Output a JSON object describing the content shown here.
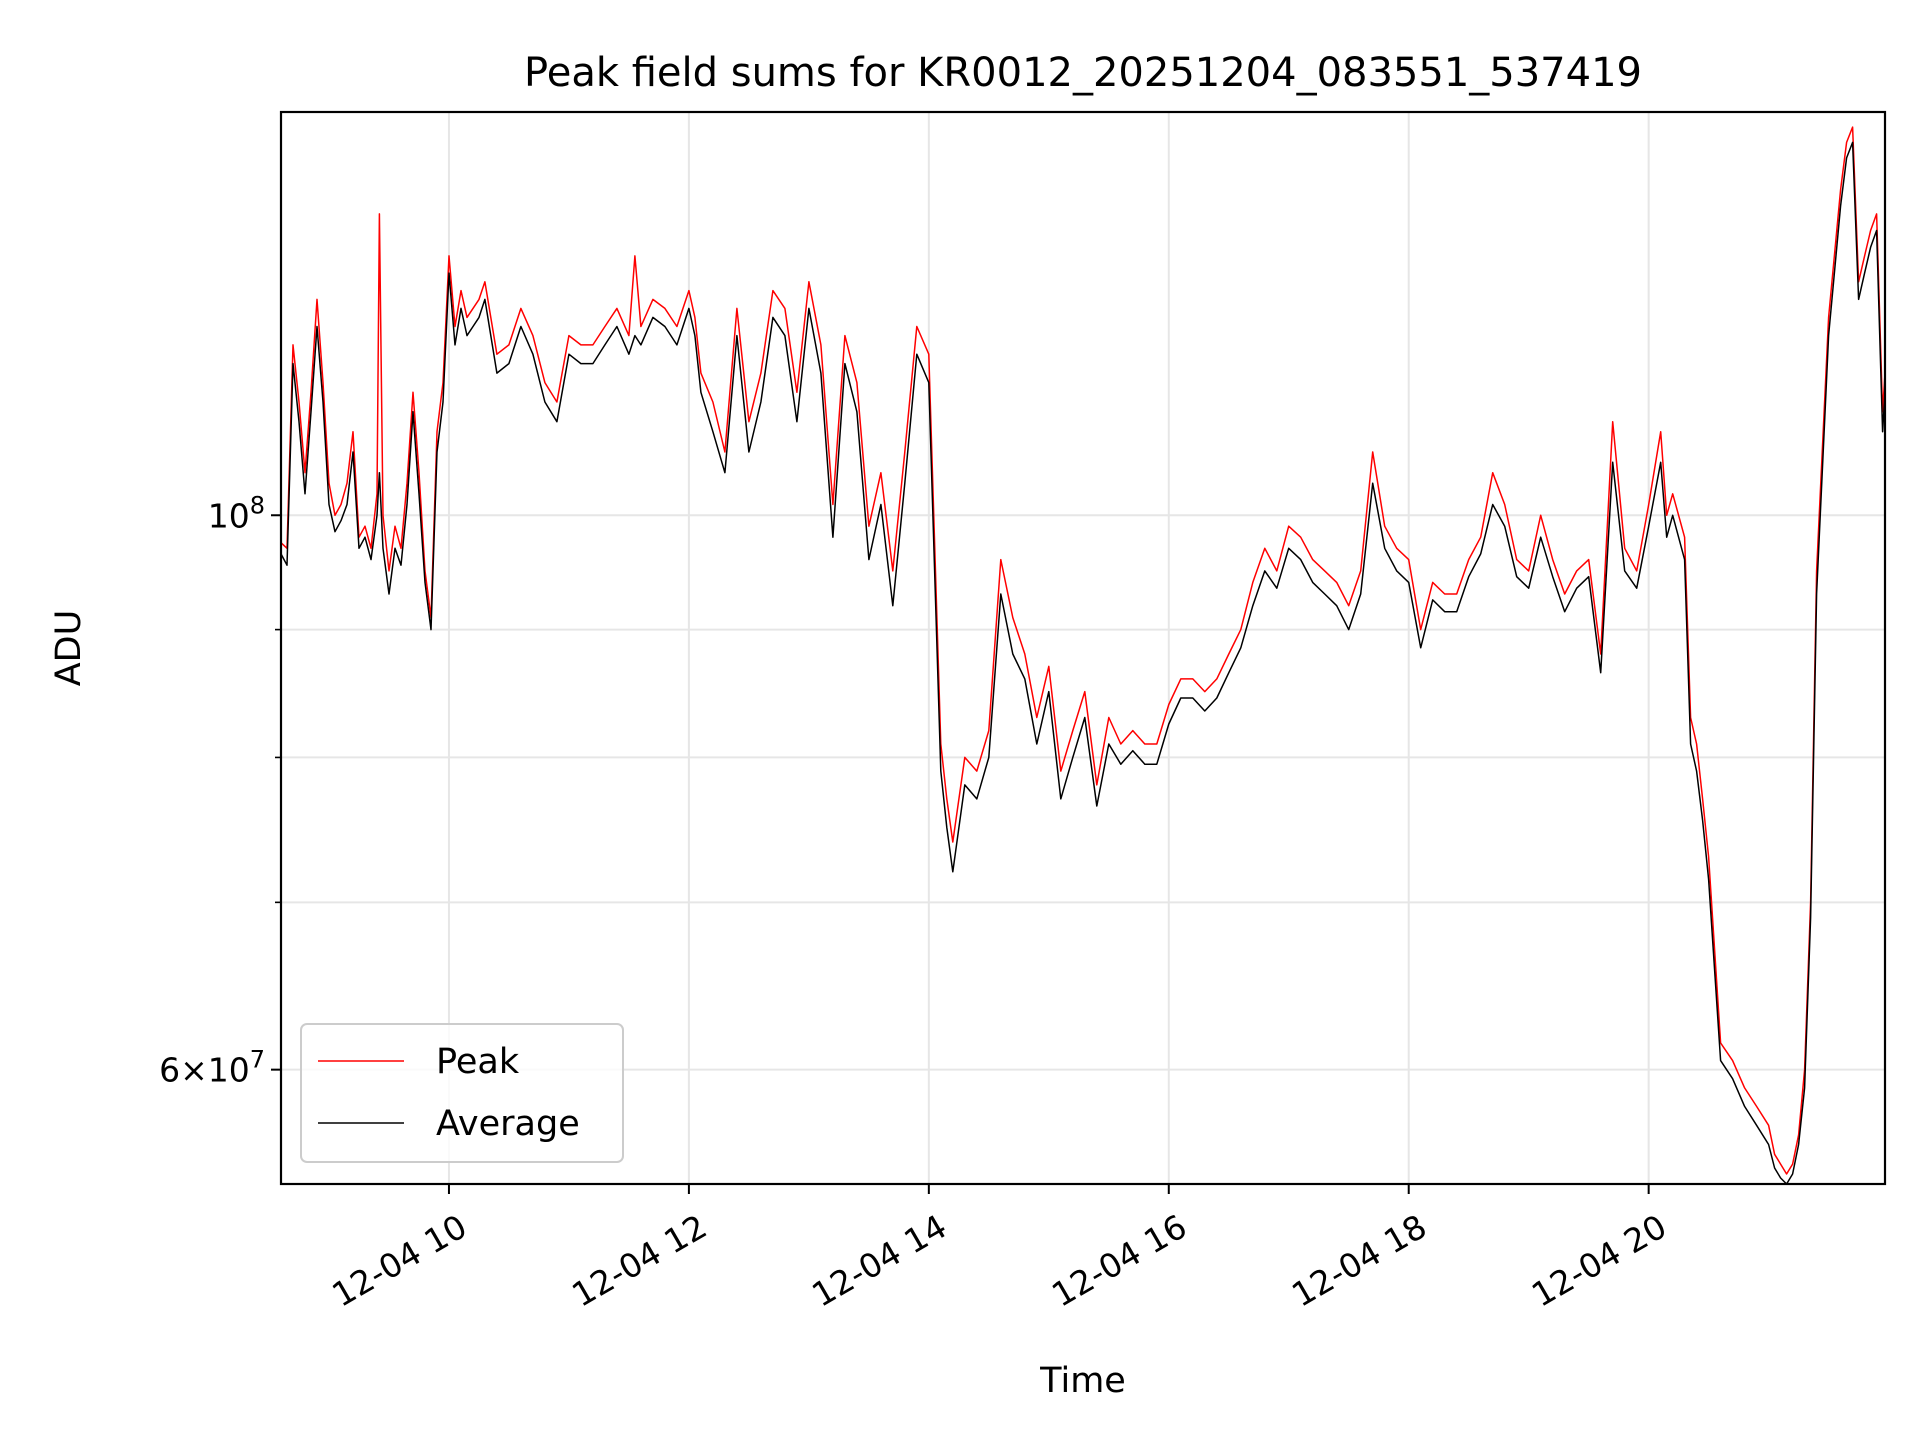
{
  "chart_data": {
    "type": "line",
    "title": "Peak field sums for KR0012_20251204_083551_537419",
    "xlabel": "Time",
    "ylabel": "ADU",
    "yscale": "log",
    "ylim": [
      54000000,
      145000000
    ],
    "xlim": [
      8.6,
      21.97
    ],
    "x_unit": "hours of day (2025-12-04)",
    "xticks": [
      {
        "value": 10,
        "label": "12-04 10"
      },
      {
        "value": 12,
        "label": "12-04 12"
      },
      {
        "value": 14,
        "label": "12-04 14"
      },
      {
        "value": 16,
        "label": "12-04 16"
      },
      {
        "value": 18,
        "label": "12-04 18"
      },
      {
        "value": 20,
        "label": "12-04 20"
      }
    ],
    "yticks_major": [
      {
        "value": 60000000,
        "base": "6",
        "times": "×",
        "exp_base": "10",
        "exp": "7"
      },
      {
        "value": 100000000,
        "base": "",
        "times": "",
        "exp_base": "10",
        "exp": "8"
      }
    ],
    "yticks_minor": [
      70000000,
      80000000,
      90000000
    ],
    "grid": true,
    "legend_position": "lower-left",
    "series": [
      {
        "name": "Peak",
        "color": "#ff0000",
        "x": [
          8.6,
          8.65,
          8.7,
          8.75,
          8.8,
          8.85,
          8.9,
          8.95,
          9.0,
          9.05,
          9.1,
          9.15,
          9.2,
          9.25,
          9.3,
          9.35,
          9.4,
          9.42,
          9.45,
          9.5,
          9.55,
          9.6,
          9.65,
          9.7,
          9.75,
          9.8,
          9.85,
          9.9,
          9.95,
          10.0,
          10.05,
          10.1,
          10.15,
          10.2,
          10.25,
          10.3,
          10.4,
          10.5,
          10.6,
          10.7,
          10.8,
          10.9,
          11.0,
          11.1,
          11.2,
          11.3,
          11.4,
          11.5,
          11.55,
          11.6,
          11.7,
          11.8,
          11.9,
          12.0,
          12.05,
          12.1,
          12.2,
          12.3,
          12.4,
          12.5,
          12.6,
          12.7,
          12.8,
          12.9,
          13.0,
          13.1,
          13.2,
          13.3,
          13.4,
          13.5,
          13.6,
          13.7,
          13.8,
          13.9,
          14.0,
          14.1,
          14.15,
          14.2,
          14.3,
          14.4,
          14.5,
          14.6,
          14.7,
          14.8,
          14.9,
          15.0,
          15.1,
          15.2,
          15.3,
          15.4,
          15.5,
          15.6,
          15.7,
          15.8,
          15.9,
          16.0,
          16.1,
          16.2,
          16.3,
          16.4,
          16.5,
          16.6,
          16.7,
          16.8,
          16.9,
          17.0,
          17.1,
          17.2,
          17.3,
          17.4,
          17.5,
          17.6,
          17.7,
          17.8,
          17.9,
          18.0,
          18.1,
          18.2,
          18.3,
          18.4,
          18.5,
          18.6,
          18.7,
          18.8,
          18.9,
          19.0,
          19.1,
          19.2,
          19.3,
          19.4,
          19.5,
          19.6,
          19.7,
          19.8,
          19.9,
          20.0,
          20.1,
          20.15,
          20.2,
          20.3,
          20.35,
          20.4,
          20.45,
          20.5,
          20.6,
          20.7,
          20.8,
          20.9,
          21.0,
          21.05,
          21.1,
          21.15,
          21.2,
          21.25,
          21.3,
          21.35,
          21.4,
          21.5,
          21.6,
          21.65,
          21.7,
          21.75,
          21.8,
          21.85,
          21.9,
          21.95,
          21.97
        ],
        "values": [
          97500000,
          97000000,
          117000000,
          111000000,
          104000000,
          112000000,
          122000000,
          113000000,
          103000000,
          100000000,
          101000000,
          103000000,
          108000000,
          98000000,
          99000000,
          97000000,
          102000000,
          132000000,
          100000000,
          95000000,
          99000000,
          97000000,
          103000000,
          112000000,
          104000000,
          95000000,
          91000000,
          108000000,
          113000000,
          127000000,
          119000000,
          123000000,
          120000000,
          121000000,
          122000000,
          124000000,
          116000000,
          117000000,
          121000000,
          118000000,
          113000000,
          111000000,
          118000000,
          117000000,
          117000000,
          119000000,
          121000000,
          118000000,
          127000000,
          119000000,
          122000000,
          121000000,
          119000000,
          123000000,
          120000000,
          114000000,
          111000000,
          106000000,
          121000000,
          109000000,
          114000000,
          123000000,
          121000000,
          112000000,
          124000000,
          117000000,
          101000000,
          118000000,
          113000000,
          99000000,
          104000000,
          95000000,
          106000000,
          119000000,
          116000000,
          81000000,
          77000000,
          74000000,
          80000000,
          79000000,
          82000000,
          96000000,
          91000000,
          88000000,
          83000000,
          87000000,
          79000000,
          82000000,
          85000000,
          78000000,
          83000000,
          81000000,
          82000000,
          81000000,
          81000000,
          84000000,
          86000000,
          86000000,
          85000000,
          86000000,
          88000000,
          90000000,
          94000000,
          97000000,
          95000000,
          99000000,
          98000000,
          96000000,
          95000000,
          94000000,
          92000000,
          95000000,
          106000000,
          99000000,
          97000000,
          96000000,
          90000000,
          94000000,
          93000000,
          93000000,
          96000000,
          98000000,
          104000000,
          101000000,
          96000000,
          95000000,
          100000000,
          96000000,
          93000000,
          95000000,
          96000000,
          88000000,
          109000000,
          97000000,
          95000000,
          101000000,
          108000000,
          100000000,
          102000000,
          98000000,
          83000000,
          81000000,
          77000000,
          73000000,
          61500000,
          60500000,
          59000000,
          58000000,
          57000000,
          55500000,
          55000000,
          54500000,
          55000000,
          56500000,
          60000000,
          70000000,
          95000000,
          120000000,
          135000000,
          141000000,
          143000000,
          124000000,
          127000000,
          130000000,
          132000000,
          110000000,
          114000000
        ]
      },
      {
        "name": "Average",
        "color": "#000000",
        "x": [
          8.6,
          8.65,
          8.7,
          8.75,
          8.8,
          8.85,
          8.9,
          8.95,
          9.0,
          9.05,
          9.1,
          9.15,
          9.2,
          9.25,
          9.3,
          9.35,
          9.4,
          9.42,
          9.45,
          9.5,
          9.55,
          9.6,
          9.65,
          9.7,
          9.75,
          9.8,
          9.85,
          9.9,
          9.95,
          10.0,
          10.05,
          10.1,
          10.15,
          10.2,
          10.25,
          10.3,
          10.4,
          10.5,
          10.6,
          10.7,
          10.8,
          10.9,
          11.0,
          11.1,
          11.2,
          11.3,
          11.4,
          11.5,
          11.55,
          11.6,
          11.7,
          11.8,
          11.9,
          12.0,
          12.05,
          12.1,
          12.2,
          12.3,
          12.4,
          12.5,
          12.6,
          12.7,
          12.8,
          12.9,
          13.0,
          13.1,
          13.2,
          13.3,
          13.4,
          13.5,
          13.6,
          13.7,
          13.8,
          13.9,
          14.0,
          14.1,
          14.15,
          14.2,
          14.3,
          14.4,
          14.5,
          14.6,
          14.7,
          14.8,
          14.9,
          15.0,
          15.1,
          15.2,
          15.3,
          15.4,
          15.5,
          15.6,
          15.7,
          15.8,
          15.9,
          16.0,
          16.1,
          16.2,
          16.3,
          16.4,
          16.5,
          16.6,
          16.7,
          16.8,
          16.9,
          17.0,
          17.1,
          17.2,
          17.3,
          17.4,
          17.5,
          17.6,
          17.7,
          17.8,
          17.9,
          18.0,
          18.1,
          18.2,
          18.3,
          18.4,
          18.5,
          18.6,
          18.7,
          18.8,
          18.9,
          19.0,
          19.1,
          19.2,
          19.3,
          19.4,
          19.5,
          19.6,
          19.7,
          19.8,
          19.9,
          20.0,
          20.1,
          20.15,
          20.2,
          20.3,
          20.35,
          20.4,
          20.45,
          20.5,
          20.6,
          20.7,
          20.8,
          20.9,
          21.0,
          21.05,
          21.1,
          21.15,
          21.2,
          21.25,
          21.3,
          21.35,
          21.4,
          21.5,
          21.6,
          21.65,
          21.7,
          21.75,
          21.8,
          21.85,
          21.9,
          21.95,
          21.97
        ],
        "values": [
          96500000,
          95500000,
          115000000,
          109000000,
          102000000,
          110000000,
          119000000,
          111000000,
          101000000,
          98500000,
          99500000,
          101000000,
          106000000,
          97000000,
          98000000,
          96000000,
          100000000,
          104000000,
          97000000,
          93000000,
          97000000,
          95500000,
          101000000,
          110000000,
          102000000,
          94000000,
          90000000,
          106000000,
          111000000,
          125000000,
          117000000,
          121000000,
          118000000,
          119000000,
          120000000,
          122000000,
          114000000,
          115000000,
          119000000,
          116000000,
          111000000,
          109000000,
          116000000,
          115000000,
          115000000,
          117000000,
          119000000,
          116000000,
          118000000,
          117000000,
          120000000,
          119000000,
          117000000,
          121000000,
          118000000,
          112000000,
          108000000,
          104000000,
          118000000,
          106000000,
          111000000,
          120000000,
          118000000,
          109000000,
          121000000,
          114000000,
          98000000,
          115000000,
          110000000,
          96000000,
          101000000,
          92000000,
          103000000,
          116000000,
          113000000,
          79000000,
          75000000,
          72000000,
          78000000,
          77000000,
          80000000,
          93000000,
          88000000,
          86000000,
          81000000,
          85000000,
          77000000,
          80000000,
          83000000,
          76500000,
          81000000,
          79500000,
          80500000,
          79500000,
          79500000,
          82500000,
          84500000,
          84500000,
          83500000,
          84500000,
          86500000,
          88500000,
          92000000,
          95000000,
          93500000,
          97000000,
          96000000,
          94000000,
          93000000,
          92000000,
          90000000,
          93000000,
          103000000,
          97000000,
          95000000,
          94000000,
          88500000,
          92500000,
          91500000,
          91500000,
          94500000,
          96500000,
          101000000,
          99000000,
          94500000,
          93500000,
          98000000,
          94500000,
          91500000,
          93500000,
          94500000,
          86500000,
          105000000,
          95000000,
          93500000,
          99000000,
          105000000,
          98000000,
          100000000,
          96000000,
          81000000,
          79000000,
          75500000,
          71500000,
          60500000,
          59500000,
          58000000,
          57000000,
          56000000,
          54800000,
          54300000,
          54000000,
          54500000,
          56000000,
          59000000,
          69000000,
          93000000,
          118000000,
          133000000,
          139000000,
          141000000,
          122000000,
          125000000,
          128000000,
          130000000,
          108000000,
          112000000
        ]
      }
    ]
  }
}
